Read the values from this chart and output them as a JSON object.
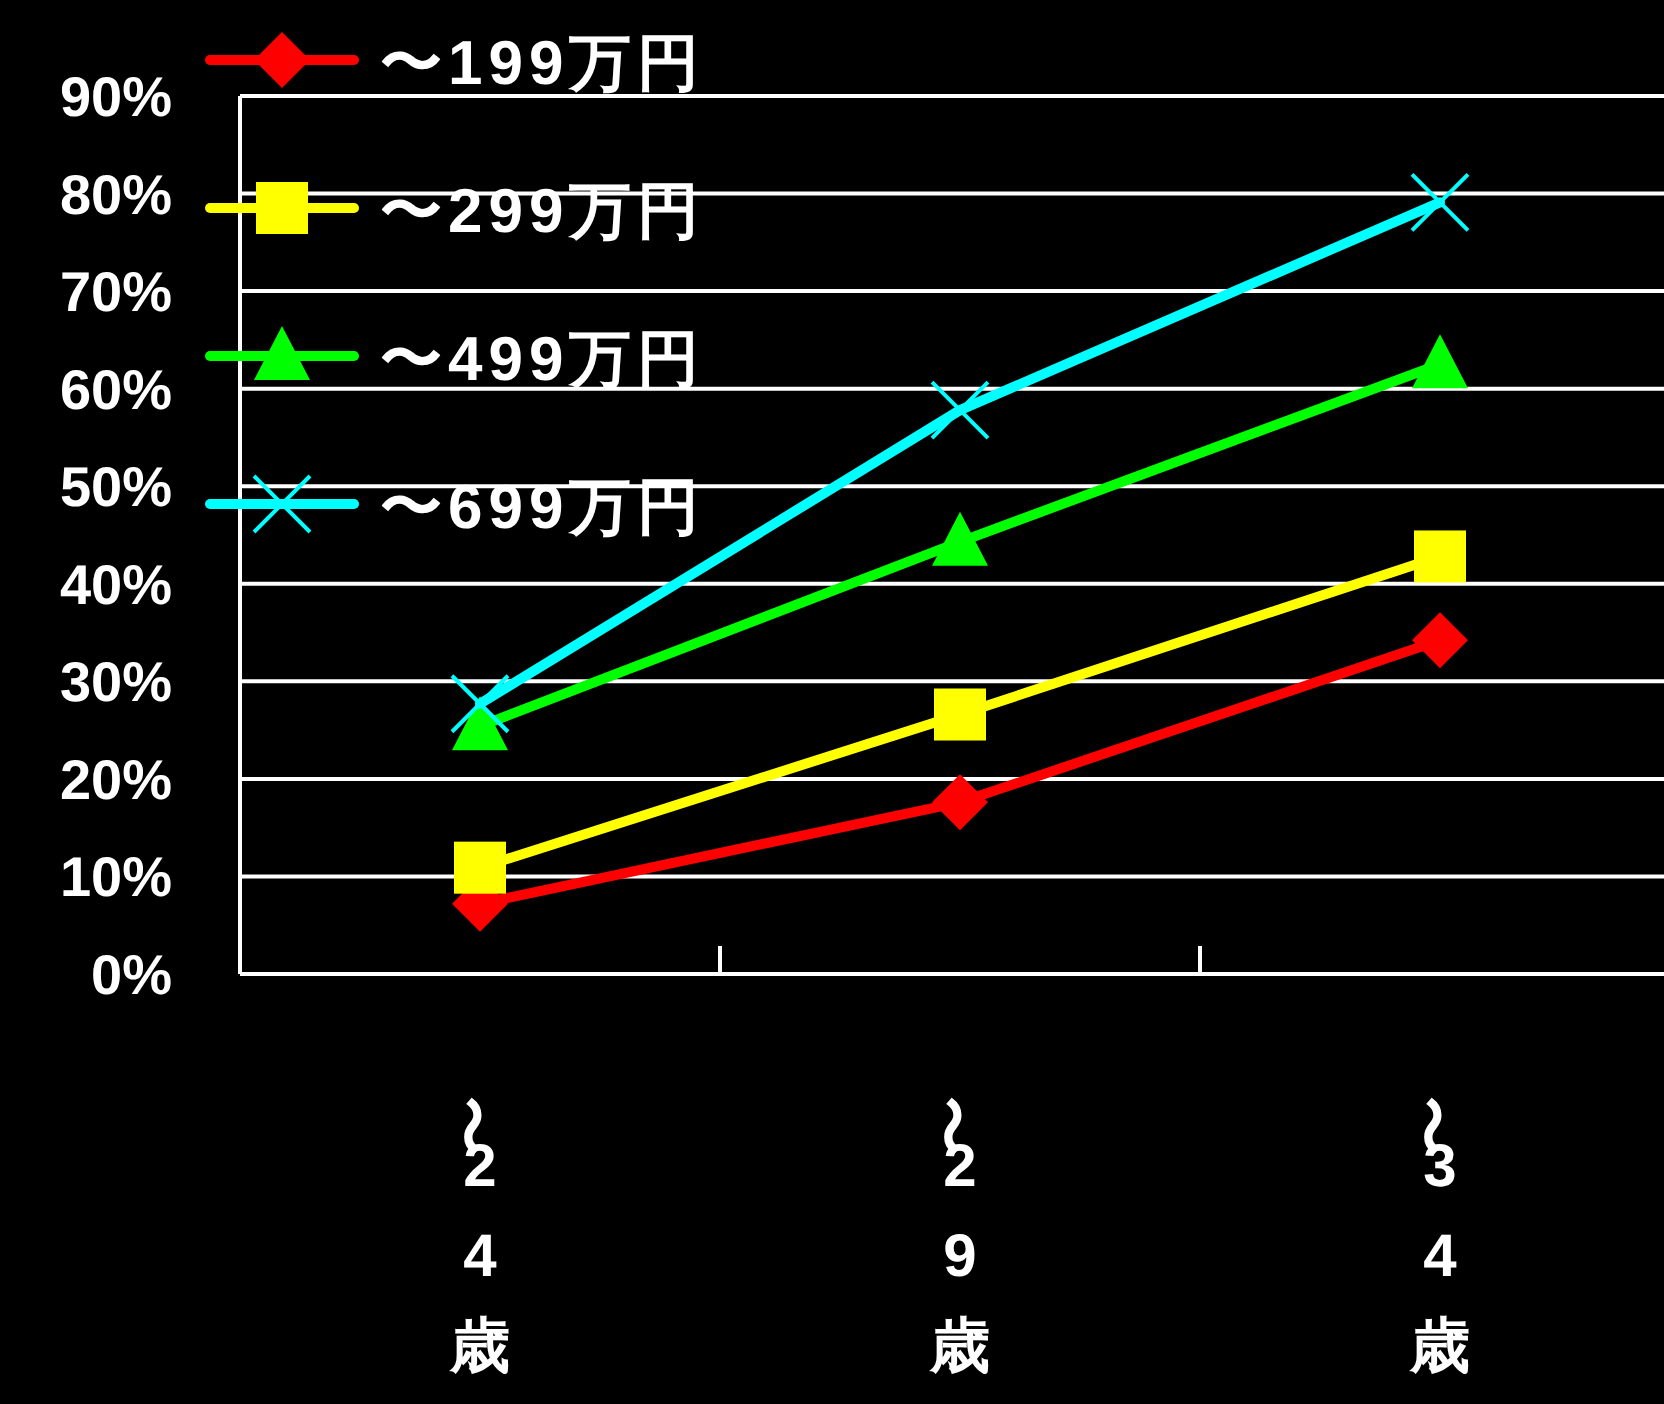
{
  "chart_data": {
    "type": "line",
    "categories": [
      "〜24歳",
      "〜29歳",
      "〜34歳"
    ],
    "series": [
      {
        "name": "〜199万円",
        "color": "#ff0000",
        "marker": "diamond",
        "values": [
          7.2,
          17.6,
          34.2
        ]
      },
      {
        "name": "〜299万円",
        "color": "#ffff00",
        "marker": "square",
        "values": [
          10.9,
          26.6,
          42.8
        ]
      },
      {
        "name": "〜499万円",
        "color": "#00ff00",
        "marker": "triangle",
        "values": [
          25.4,
          44.3,
          62.5
        ]
      },
      {
        "name": "〜699万円",
        "color": "#00ffff",
        "marker": "cross",
        "values": [
          27.7,
          57.8,
          79.1
        ]
      }
    ],
    "ylim": [
      0,
      90
    ],
    "yticks": [
      {
        "value": 0,
        "label": "0%"
      },
      {
        "value": 10,
        "label": "10%"
      },
      {
        "value": 20,
        "label": "20%"
      },
      {
        "value": 30,
        "label": "30%"
      },
      {
        "value": 40,
        "label": "40%"
      },
      {
        "value": 50,
        "label": "50%"
      },
      {
        "value": 60,
        "label": "60%"
      },
      {
        "value": 70,
        "label": "70%"
      },
      {
        "value": 80,
        "label": "80%"
      },
      {
        "value": 90,
        "label": "90%"
      }
    ],
    "grid": "y",
    "legend": "top left",
    "line_style": "solid"
  }
}
